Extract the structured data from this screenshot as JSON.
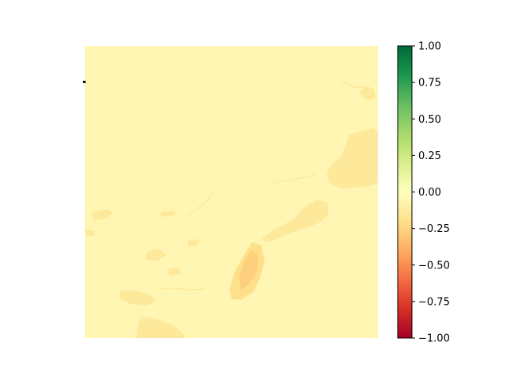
{
  "chart_data": {
    "type": "heatmap",
    "title": "",
    "xlabel": "",
    "ylabel": "",
    "axes_visible": false,
    "colormap": "RdYlGn",
    "colormap_stops": [
      "#a50026",
      "#d73027",
      "#f46d43",
      "#fdae61",
      "#fee08b",
      "#ffffbf",
      "#d9ef8b",
      "#a6d96a",
      "#66bd63",
      "#1a9850",
      "#006837"
    ],
    "value_range": [
      -1.0,
      1.0
    ],
    "dominant_value": -0.05,
    "feature_values": [
      -0.15,
      -0.2,
      -0.3
    ],
    "colorbar": {
      "ticks": [
        1.0,
        0.75,
        0.5,
        0.25,
        0.0,
        -0.25,
        -0.5,
        -0.75,
        -1.0
      ],
      "tick_labels": [
        "1.00",
        "0.75",
        "0.50",
        "0.25",
        "0.00",
        "−0.25",
        "−0.50",
        "−0.75",
        "−1.00"
      ]
    }
  }
}
